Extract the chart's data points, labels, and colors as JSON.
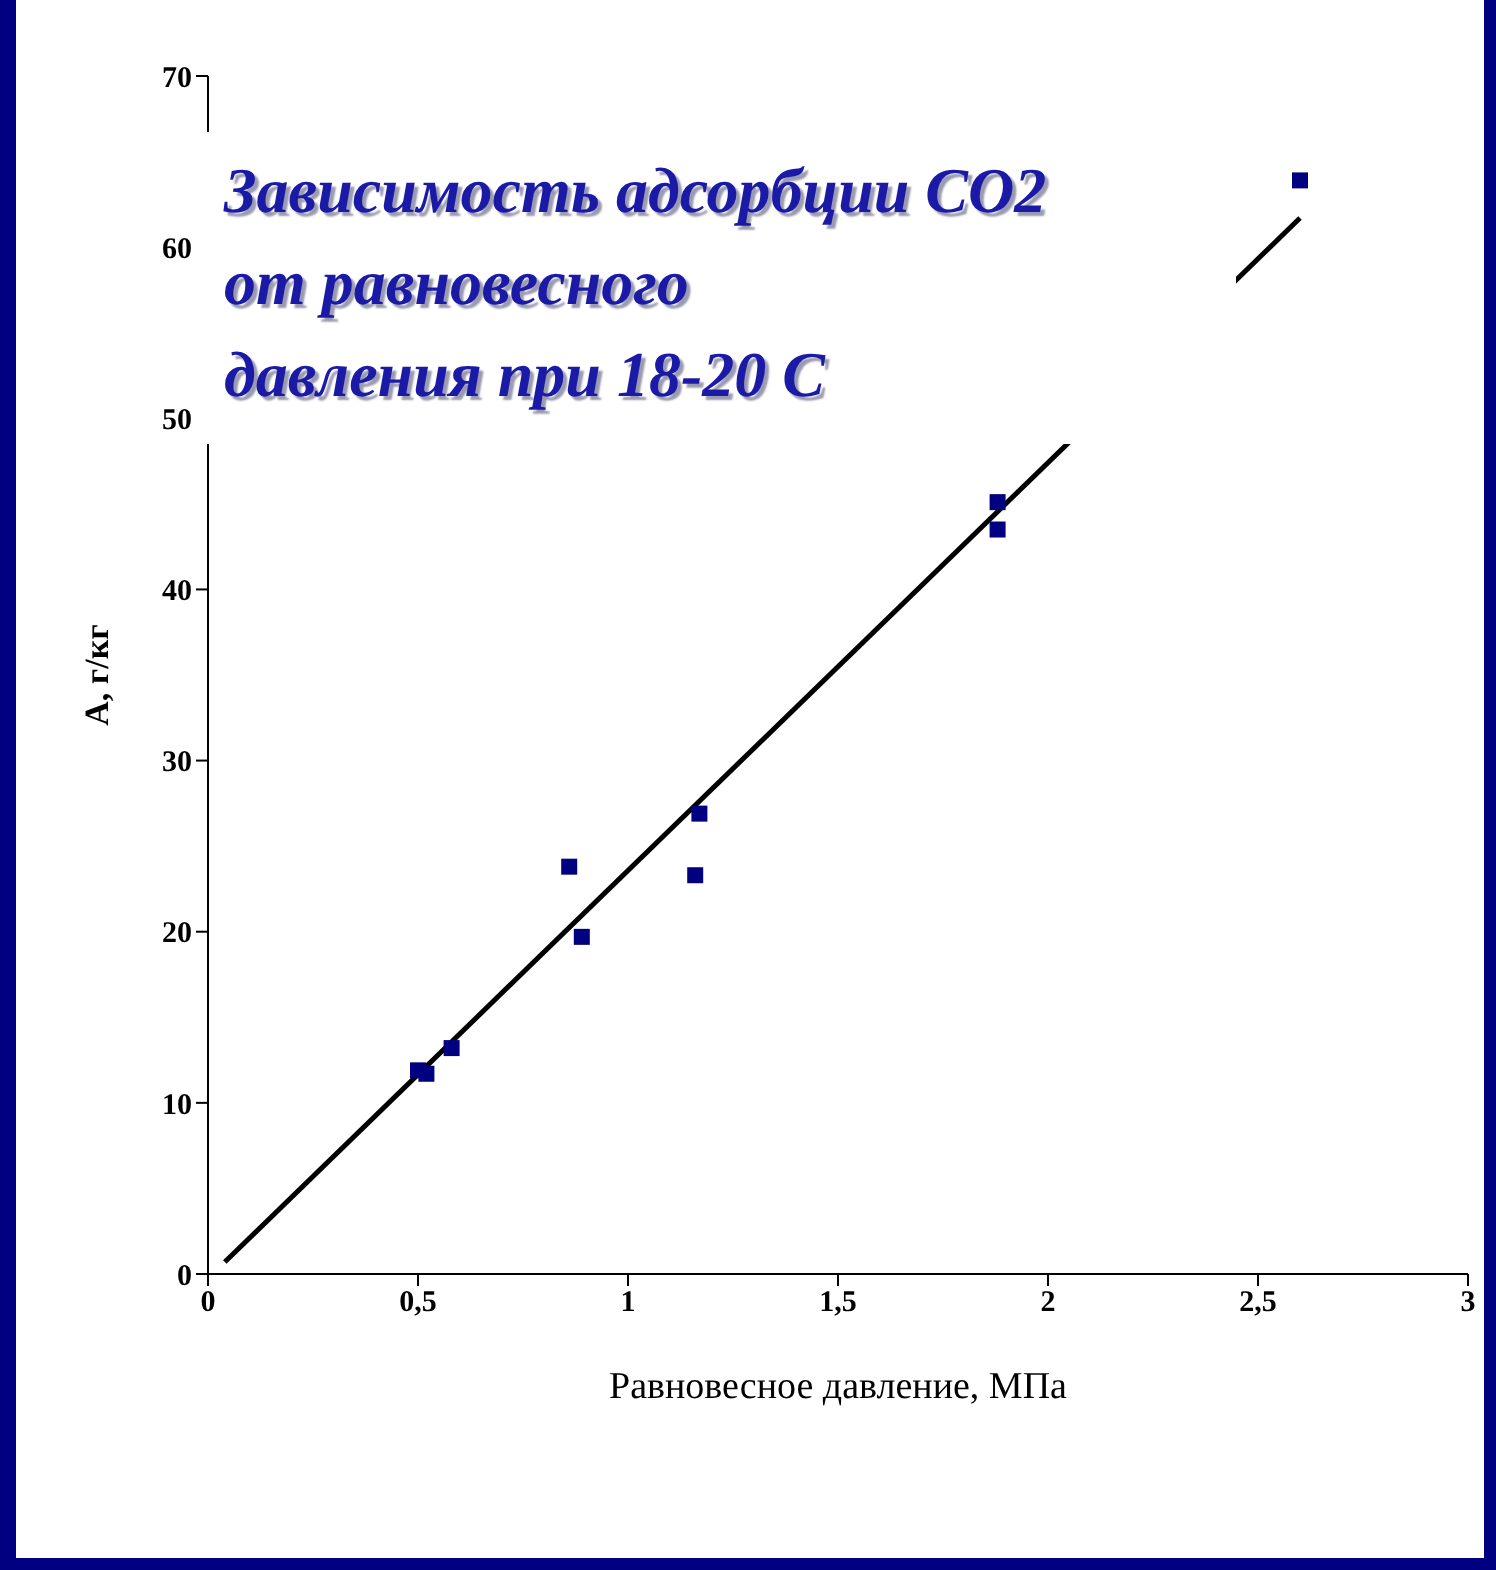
{
  "chart_data": {
    "type": "scatter",
    "title": "Зависимость адсорбции CO2\nот равновесного\nдавления при 18-20 C",
    "xlabel": "Равновесное давление, МПа",
    "ylabel": "А, г/кг",
    "xlim": [
      0,
      3
    ],
    "xticks": [
      0,
      {
        "value": 0.5,
        "label": "0,5"
      },
      1,
      {
        "value": 1.5,
        "label": "1,5"
      },
      2,
      {
        "value": 2.5,
        "label": "2,5"
      },
      3
    ],
    "ylim": [
      0,
      70
    ],
    "yticks": [
      0,
      10,
      20,
      30,
      40,
      50,
      60,
      70
    ],
    "grid": false,
    "legend": false,
    "series": [
      {
        "marker": "square",
        "color": "#000080",
        "x": [
          0.5,
          0.52,
          0.58,
          0.86,
          0.89,
          1.16,
          1.17,
          1.88,
          1.88,
          2.6
        ],
        "values": [
          11.9,
          11.7,
          13.2,
          23.8,
          19.7,
          23.3,
          26.9,
          45.1,
          43.5,
          63.9
        ]
      },
      {
        "type": "line",
        "marker": "none",
        "line_style": "solid",
        "color": "#000000",
        "x": [
          0.04,
          2.6
        ],
        "values": [
          0.7,
          61.7
        ]
      }
    ]
  }
}
